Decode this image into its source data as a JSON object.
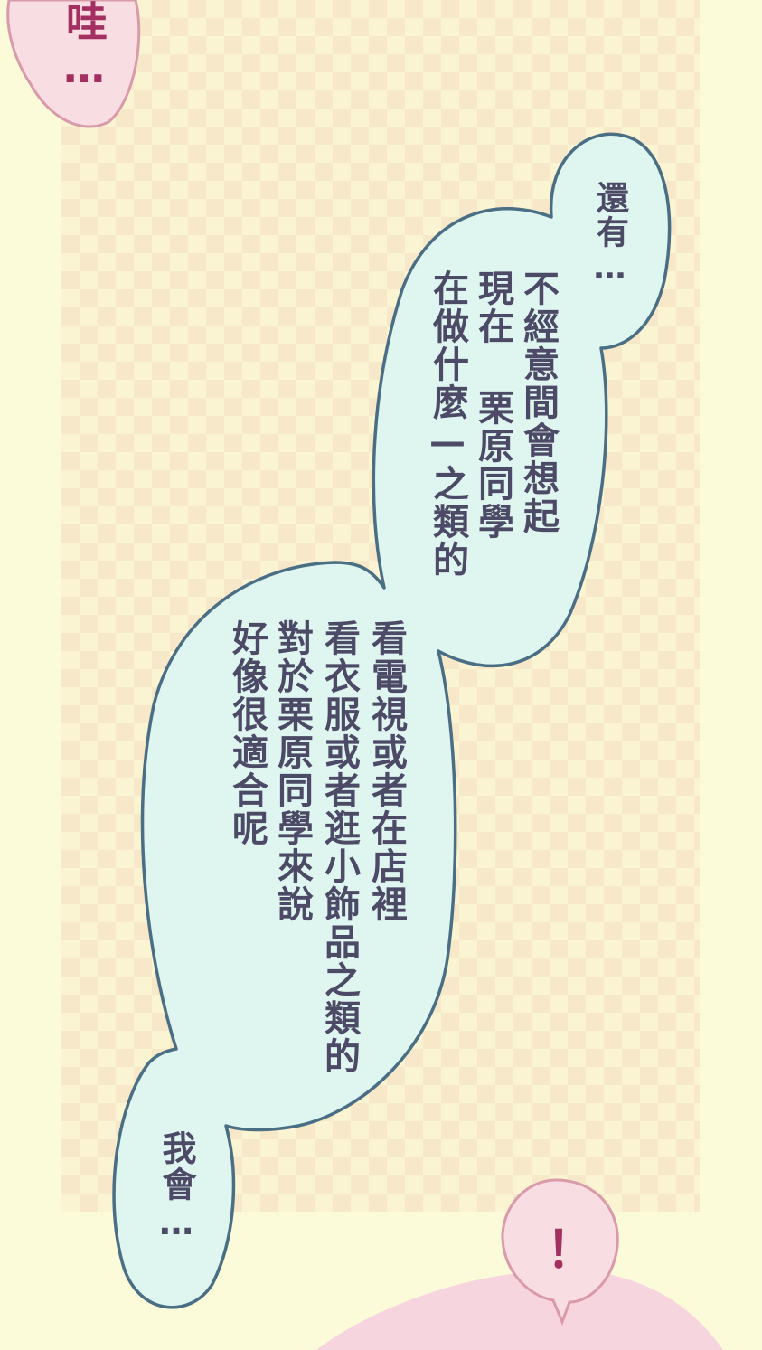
{
  "colors": {
    "background": "#fbfad9",
    "speech_bubble_fill": "#dff5ef",
    "speech_bubble_outline": "#4a6e84",
    "pink_bubble_fill": "#f8dde3",
    "pink_bubble_outline": "#d99aaa",
    "text_color": "#4c4a66",
    "accent_text": "#a33060"
  },
  "texts": {
    "wa": "哇…",
    "haiyou": "還有…",
    "block1": [
      "不經意間會想起",
      "現在 栗原同學",
      "在做什麼—之類的"
    ],
    "block2": [
      "看電視或者在店裡",
      "看衣服或者逛小飾品之類的",
      "對於栗原同學來說",
      "好像很適合呢"
    ],
    "wohui": "我會…",
    "exclaim": "！"
  }
}
